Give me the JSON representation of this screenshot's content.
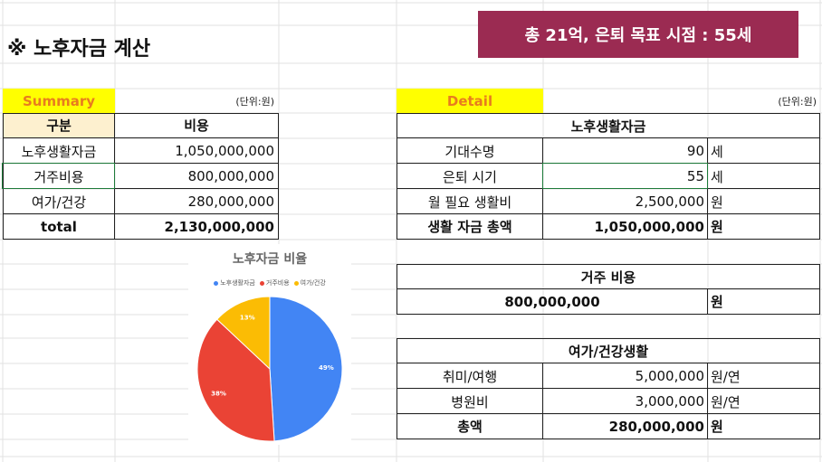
{
  "title": "※ 노후자금 계산",
  "banner": "총 21억, 은퇴 목표 시점 : 55세",
  "summary": {
    "label": "Summary",
    "unit_note": "(단위:원)",
    "col_category": "구분",
    "col_cost": "비용",
    "rows": [
      {
        "name": "노후생활자금",
        "value": "1,050,000,000"
      },
      {
        "name": "거주비용",
        "value": "800,000,000"
      },
      {
        "name": "여가/건강",
        "value": "280,000,000"
      }
    ],
    "total_label": "total",
    "total_value": "2,130,000,000"
  },
  "detail": {
    "label": "Detail",
    "unit_note": "(단위:원)",
    "living": {
      "header": "노후생활자금",
      "rows": [
        {
          "name": "기대수명",
          "value": "90",
          "unit": "세"
        },
        {
          "name": "은퇴 시기",
          "value": "55",
          "unit": "세"
        },
        {
          "name": "월 필요 생활비",
          "value": "2,500,000",
          "unit": "원"
        },
        {
          "name": "생활 자금 총액",
          "value": "1,050,000,000",
          "unit": "원"
        }
      ]
    },
    "housing": {
      "header": "거주 비용",
      "value": "800,000,000",
      "unit": "원"
    },
    "leisure": {
      "header": "여가/건강생활",
      "rows": [
        {
          "name": "취미/여행",
          "value": "5,000,000",
          "unit": "원/연"
        },
        {
          "name": "병원비",
          "value": "3,000,000",
          "unit": "원/연"
        },
        {
          "name": "총액",
          "value": "280,000,000",
          "unit": "원"
        }
      ]
    }
  },
  "chart_data": {
    "type": "pie",
    "title": "노후자금 비율",
    "categories": [
      "노후생활자금",
      "거주비용",
      "여가/건강"
    ],
    "values": [
      49,
      38,
      13
    ],
    "labels": [
      "49%",
      "38%",
      "13%"
    ],
    "colors": [
      "#4285f4",
      "#ea4335",
      "#fbbc04"
    ],
    "legend": "top"
  }
}
